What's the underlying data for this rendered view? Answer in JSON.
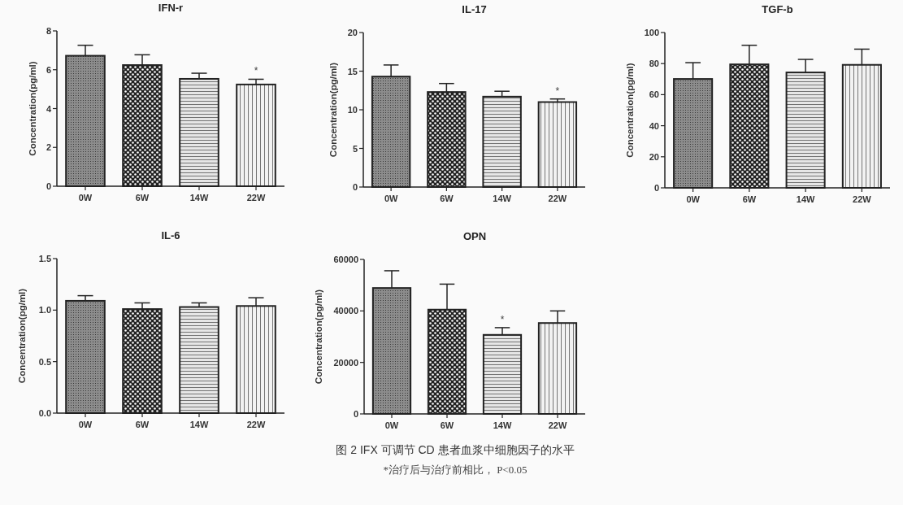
{
  "chart_data": [
    {
      "type": "bar",
      "title": "IFN-r",
      "ylabel": "Concentration(pg/ml)",
      "categories": [
        "0W",
        "6W",
        "14W",
        "22W"
      ],
      "values": [
        6.72,
        6.24,
        5.53,
        5.24
      ],
      "errors": [
        [
          6.72,
          7.26
        ],
        [
          6.24,
          6.77
        ],
        [
          5.53,
          5.82
        ],
        [
          5.24,
          5.51
        ]
      ],
      "ylim": [
        0,
        8
      ],
      "yticks": [
        0,
        2,
        4,
        6,
        8
      ],
      "annotations": [
        {
          "text": "*",
          "x": "22W",
          "y": 5.24
        }
      ]
    },
    {
      "type": "bar",
      "title": "IL-17",
      "ylabel": "Concentration(pg/ml)",
      "categories": [
        "0W",
        "6W",
        "14W",
        "22W"
      ],
      "values": [
        14.3,
        12.3,
        11.7,
        11.0
      ],
      "errors": [
        [
          14.3,
          15.8
        ],
        [
          12.3,
          13.4
        ],
        [
          11.7,
          12.4
        ],
        [
          11.0,
          11.4
        ]
      ],
      "ylim": [
        0,
        20
      ],
      "yticks": [
        0,
        5,
        10,
        15,
        20
      ],
      "annotations": [
        {
          "text": "*",
          "x": "22W",
          "y": 11.0
        }
      ]
    },
    {
      "type": "bar",
      "title": "TGF-b",
      "ylabel": "Concentration(pg/ml)",
      "categories": [
        "0W",
        "6W",
        "14W",
        "22W"
      ],
      "values": [
        70.1,
        79.5,
        74.3,
        79.2
      ],
      "errors": [
        [
          70.1,
          80.6
        ],
        [
          79.5,
          91.8
        ],
        [
          74.3,
          82.7
        ],
        [
          79.2,
          89.3
        ]
      ],
      "ylim": [
        0,
        100
      ],
      "yticks": [
        0,
        20,
        40,
        60,
        80,
        100
      ]
    },
    {
      "type": "bar",
      "title": "IL-6",
      "ylabel": "Concentration(pg/ml)",
      "categories": [
        "0W",
        "6W",
        "14W",
        "22W"
      ],
      "values": [
        1.09,
        1.01,
        1.03,
        1.04
      ],
      "errors": [
        [
          1.09,
          1.14
        ],
        [
          1.01,
          1.07
        ],
        [
          1.03,
          1.07
        ],
        [
          1.04,
          1.12
        ]
      ],
      "ylim": [
        0,
        1.5
      ],
      "yticks": [
        {
          "value": 0,
          "label": "0.0"
        },
        0.5,
        {
          "value": 1,
          "label": "1.0"
        },
        1.5
      ]
    },
    {
      "type": "bar",
      "title": "OPN",
      "ylabel": "Concentration(pg/ml)",
      "categories": [
        "0W",
        "6W",
        "14W",
        "22W"
      ],
      "values": [
        48900,
        40500,
        30700,
        35300
      ],
      "errors": [
        [
          48900,
          55600
        ],
        [
          40500,
          50400
        ],
        [
          30700,
          33500
        ],
        [
          35300,
          40000
        ]
      ],
      "ylim": [
        0,
        60000
      ],
      "yticks": [
        0,
        20000,
        40000,
        60000
      ],
      "annotations": [
        {
          "text": "*",
          "x": "14W",
          "y": 30700
        },
        "图 2  IFX 可调节 CD 患者血浆中细胞因子的水平",
        "*治疗后与治疗前相比， P<0.05"
      ]
    }
  ]
}
